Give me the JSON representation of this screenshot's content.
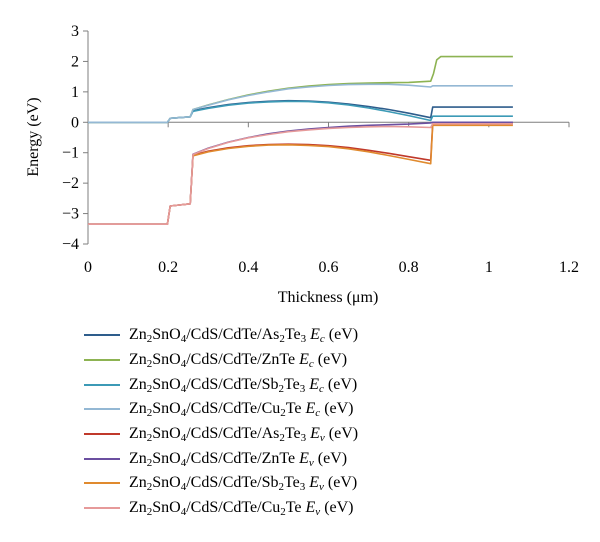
{
  "chart_data": {
    "type": "line",
    "title": "",
    "xlabel": "Thickness (μm)",
    "ylabel": "Energy (eV)",
    "xlim": [
      0,
      1.2
    ],
    "ylim": [
      -4,
      3
    ],
    "xticks": [
      0,
      0.2,
      0.4,
      0.6,
      0.8,
      1,
      1.2
    ],
    "xtick_labels": [
      "0",
      "0.2",
      "0.4",
      "0.6",
      "0.8",
      "1",
      "1.2"
    ],
    "yticks": [
      -4,
      -3,
      -2,
      -1,
      0,
      1,
      2,
      3
    ],
    "ytick_labels": [
      "−4",
      "−3",
      "−2",
      "−1",
      "0",
      "1",
      "2",
      "3"
    ],
    "grid": false,
    "legend_position": "bottom",
    "series": [
      {
        "name": "Zn2SnO4/CdS/CdTe/As2Te3 Ec (eV)",
        "name_parts": [
          [
            "Zn",
            ""
          ],
          [
            "2",
            "sub"
          ],
          [
            "SnO",
            ""
          ],
          [
            "4",
            "sub"
          ],
          [
            "/CdS/CdTe/As",
            ""
          ],
          [
            "2",
            "sub"
          ],
          [
            "Te",
            ""
          ],
          [
            "3",
            "sub"
          ],
          [
            " ",
            ""
          ],
          [
            "E",
            "i"
          ],
          [
            "c",
            "isub"
          ],
          [
            " (eV)",
            ""
          ]
        ],
        "color": "#2e5d8c",
        "x": [
          0,
          0.198,
          0.205,
          0.255,
          0.262,
          0.3,
          0.35,
          0.4,
          0.45,
          0.5,
          0.55,
          0.6,
          0.65,
          0.7,
          0.75,
          0.8,
          0.855,
          0.86,
          1.06
        ],
        "y": [
          0,
          0,
          0.13,
          0.18,
          0.38,
          0.48,
          0.58,
          0.65,
          0.69,
          0.71,
          0.7,
          0.66,
          0.6,
          0.52,
          0.42,
          0.3,
          0.15,
          0.5,
          0.5
        ]
      },
      {
        "name": "Zn2SnO4/CdS/CdTe/ZnTe Ec (eV)",
        "name_parts": [
          [
            "Zn",
            ""
          ],
          [
            "2",
            "sub"
          ],
          [
            "SnO",
            ""
          ],
          [
            "4",
            "sub"
          ],
          [
            "/CdS/CdTe/ZnTe ",
            ""
          ],
          [
            "E",
            "i"
          ],
          [
            "c",
            "isub"
          ],
          [
            " (eV)",
            ""
          ]
        ],
        "color": "#8db352",
        "x": [
          0,
          0.198,
          0.205,
          0.255,
          0.262,
          0.3,
          0.35,
          0.4,
          0.45,
          0.5,
          0.55,
          0.6,
          0.65,
          0.7,
          0.75,
          0.8,
          0.855,
          0.862,
          0.87,
          0.88,
          1.06
        ],
        "y": [
          0,
          0,
          0.13,
          0.18,
          0.42,
          0.57,
          0.75,
          0.9,
          1.02,
          1.12,
          1.19,
          1.24,
          1.27,
          1.29,
          1.3,
          1.31,
          1.35,
          1.6,
          2.05,
          2.16,
          2.16
        ]
      },
      {
        "name": "Zn2SnO4/CdS/CdTe/Sb2Te3 Ec (eV)",
        "name_parts": [
          [
            "Zn",
            ""
          ],
          [
            "2",
            "sub"
          ],
          [
            "SnO",
            ""
          ],
          [
            "4",
            "sub"
          ],
          [
            "/CdS/CdTe/Sb",
            ""
          ],
          [
            "2",
            "sub"
          ],
          [
            "Te",
            ""
          ],
          [
            "3",
            "sub"
          ],
          [
            " ",
            ""
          ],
          [
            "E",
            "i"
          ],
          [
            "c",
            "isub"
          ],
          [
            " (eV)",
            ""
          ]
        ],
        "color": "#3c9ab6",
        "x": [
          0,
          0.198,
          0.205,
          0.255,
          0.262,
          0.3,
          0.35,
          0.4,
          0.45,
          0.5,
          0.55,
          0.6,
          0.65,
          0.7,
          0.75,
          0.8,
          0.855,
          0.86,
          1.06
        ],
        "y": [
          0,
          0,
          0.13,
          0.18,
          0.36,
          0.46,
          0.56,
          0.63,
          0.67,
          0.69,
          0.68,
          0.64,
          0.57,
          0.47,
          0.35,
          0.22,
          0.06,
          0.2,
          0.2
        ]
      },
      {
        "name": "Zn2SnO4/CdS/CdTe/Cu2Te Ec (eV)",
        "name_parts": [
          [
            "Zn",
            ""
          ],
          [
            "2",
            "sub"
          ],
          [
            "SnO",
            ""
          ],
          [
            "4",
            "sub"
          ],
          [
            "/CdS/CdTe/Cu",
            ""
          ],
          [
            "2",
            "sub"
          ],
          [
            "Te ",
            ""
          ],
          [
            "E",
            "i"
          ],
          [
            "c",
            "isub"
          ],
          [
            " (eV)",
            ""
          ]
        ],
        "color": "#94b8d4",
        "x": [
          0,
          0.198,
          0.205,
          0.255,
          0.262,
          0.3,
          0.35,
          0.4,
          0.45,
          0.5,
          0.55,
          0.6,
          0.65,
          0.7,
          0.75,
          0.8,
          0.855,
          0.86,
          1.06
        ],
        "y": [
          0,
          0,
          0.13,
          0.18,
          0.42,
          0.56,
          0.74,
          0.88,
          1.0,
          1.1,
          1.16,
          1.21,
          1.24,
          1.25,
          1.25,
          1.22,
          1.16,
          1.2,
          1.2
        ]
      },
      {
        "name": "Zn2SnO4/CdS/CdTe/As2Te3 Ev (eV)",
        "name_parts": [
          [
            "Zn",
            ""
          ],
          [
            "2",
            "sub"
          ],
          [
            "SnO",
            ""
          ],
          [
            "4",
            "sub"
          ],
          [
            "/CdS/CdTe/As",
            ""
          ],
          [
            "2",
            "sub"
          ],
          [
            "Te",
            ""
          ],
          [
            "3",
            "sub"
          ],
          [
            " ",
            ""
          ],
          [
            "E",
            "i"
          ],
          [
            "v",
            "isub"
          ],
          [
            " (eV)",
            ""
          ]
        ],
        "color": "#c0392b",
        "x": [
          0,
          0.198,
          0.205,
          0.255,
          0.262,
          0.3,
          0.35,
          0.4,
          0.45,
          0.5,
          0.55,
          0.6,
          0.65,
          0.7,
          0.75,
          0.8,
          0.855,
          0.86,
          1.06
        ],
        "y": [
          -3.35,
          -3.35,
          -2.75,
          -2.68,
          -1.08,
          -0.95,
          -0.84,
          -0.77,
          -0.73,
          -0.72,
          -0.73,
          -0.77,
          -0.83,
          -0.92,
          -1.02,
          -1.13,
          -1.25,
          -0.04,
          -0.04
        ]
      },
      {
        "name": "Zn2SnO4/CdS/CdTe/ZnTe Ev (eV)",
        "name_parts": [
          [
            "Zn",
            ""
          ],
          [
            "2",
            "sub"
          ],
          [
            "SnO",
            ""
          ],
          [
            "4",
            "sub"
          ],
          [
            "/CdS/CdTe/ZnTe ",
            ""
          ],
          [
            "E",
            "i"
          ],
          [
            "v",
            "isub"
          ],
          [
            " (eV)",
            ""
          ]
        ],
        "color": "#6b4fa0",
        "x": [
          0,
          0.198,
          0.205,
          0.255,
          0.262,
          0.3,
          0.35,
          0.4,
          0.45,
          0.5,
          0.55,
          0.6,
          0.65,
          0.7,
          0.75,
          0.8,
          0.855,
          0.86,
          1.06
        ],
        "y": [
          -3.35,
          -3.35,
          -2.75,
          -2.68,
          -1.05,
          -0.85,
          -0.65,
          -0.5,
          -0.38,
          -0.29,
          -0.22,
          -0.17,
          -0.13,
          -0.1,
          -0.08,
          -0.06,
          -0.02,
          0.0,
          0.0
        ]
      },
      {
        "name": "Zn2SnO4/CdS/CdTe/Sb2Te3 Ev (eV)",
        "name_parts": [
          [
            "Zn",
            ""
          ],
          [
            "2",
            "sub"
          ],
          [
            "SnO",
            ""
          ],
          [
            "4",
            "sub"
          ],
          [
            "/CdS/CdTe/Sb",
            ""
          ],
          [
            "2",
            "sub"
          ],
          [
            "Te",
            ""
          ],
          [
            "3",
            "sub"
          ],
          [
            " ",
            ""
          ],
          [
            "E",
            "i"
          ],
          [
            "v",
            "isub"
          ],
          [
            " (eV)",
            ""
          ]
        ],
        "color": "#e08a2e",
        "x": [
          0,
          0.198,
          0.205,
          0.255,
          0.262,
          0.3,
          0.35,
          0.4,
          0.45,
          0.5,
          0.55,
          0.6,
          0.65,
          0.7,
          0.75,
          0.8,
          0.855,
          0.86,
          1.06
        ],
        "y": [
          -3.35,
          -3.35,
          -2.75,
          -2.68,
          -1.1,
          -0.97,
          -0.86,
          -0.79,
          -0.75,
          -0.74,
          -0.76,
          -0.8,
          -0.87,
          -0.97,
          -1.09,
          -1.22,
          -1.36,
          -0.1,
          -0.1
        ]
      },
      {
        "name": "Zn2SnO4/CdS/CdTe/Cu2Te Ev (eV)",
        "name_parts": [
          [
            "Zn",
            ""
          ],
          [
            "2",
            "sub"
          ],
          [
            "SnO",
            ""
          ],
          [
            "4",
            "sub"
          ],
          [
            "/CdS/CdTe/Cu",
            ""
          ],
          [
            "2",
            "sub"
          ],
          [
            "Te ",
            ""
          ],
          [
            "E",
            "i"
          ],
          [
            "v",
            "isub"
          ],
          [
            " (eV)",
            ""
          ]
        ],
        "color": "#e69a9a",
        "x": [
          0,
          0.198,
          0.205,
          0.255,
          0.262,
          0.3,
          0.35,
          0.4,
          0.45,
          0.5,
          0.55,
          0.6,
          0.65,
          0.7,
          0.75,
          0.8,
          0.855,
          0.86,
          1.06
        ],
        "y": [
          -3.35,
          -3.35,
          -2.75,
          -2.68,
          -1.06,
          -0.86,
          -0.66,
          -0.51,
          -0.4,
          -0.31,
          -0.25,
          -0.2,
          -0.17,
          -0.15,
          -0.14,
          -0.15,
          -0.17,
          -0.05,
          -0.05
        ]
      }
    ]
  }
}
